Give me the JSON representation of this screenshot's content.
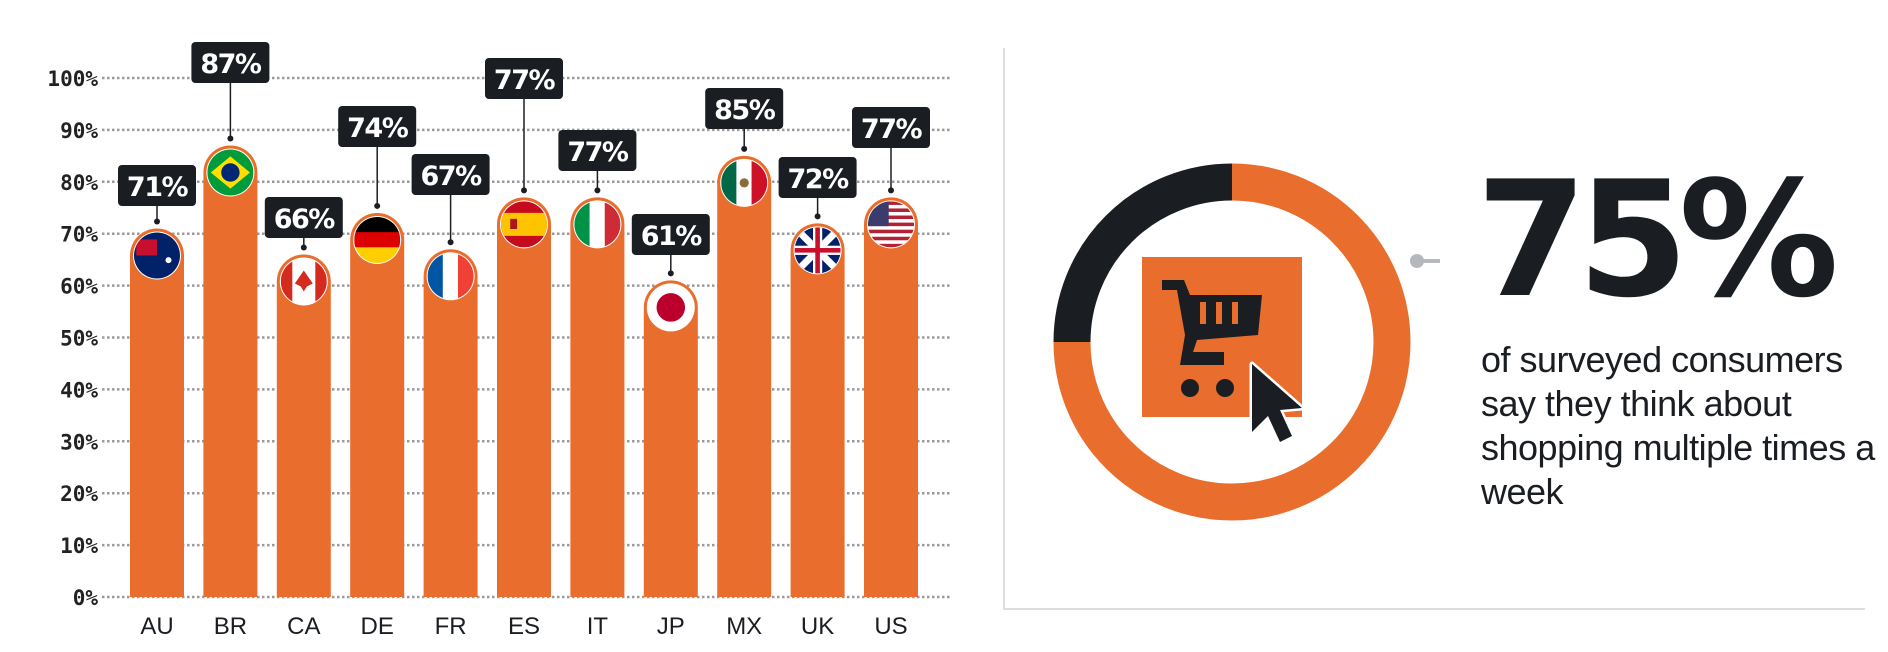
{
  "chart_data": {
    "type": "bar",
    "categories": [
      "AU",
      "BR",
      "CA",
      "DE",
      "FR",
      "ES",
      "IT",
      "JP",
      "MX",
      "UK",
      "US"
    ],
    "values": [
      71,
      87,
      66,
      74,
      67,
      77,
      77,
      61,
      85,
      72,
      77
    ],
    "value_labels": [
      "71%",
      "87%",
      "66%",
      "74%",
      "67%",
      "77%",
      "77%",
      "61%",
      "85%",
      "72%",
      "77%"
    ],
    "flag_icons": [
      "australia-flag",
      "brazil-flag",
      "canada-flag",
      "germany-flag",
      "france-flag",
      "spain-flag",
      "italy-flag",
      "japan-flag",
      "mexico-flag",
      "uk-flag",
      "us-flag"
    ],
    "yticks": [
      "0%",
      "10%",
      "20%",
      "30%",
      "40%",
      "50%",
      "60%",
      "70%",
      "80%",
      "90%",
      "100%"
    ],
    "ylim": [
      0,
      100
    ],
    "grid": true,
    "title": "",
    "xlabel": "",
    "ylabel": "",
    "bar_color": "#E96D2C",
    "label_color": "#1A1E23"
  },
  "stat": {
    "value": "75%",
    "fraction": 0.75,
    "description": "of surveyed consumers say they think about shopping multiple times a week",
    "icon": "shopping-cart-cursor-icon",
    "ring_colors": {
      "filled": "#E96D2C",
      "remainder": "#1A1E23"
    }
  }
}
